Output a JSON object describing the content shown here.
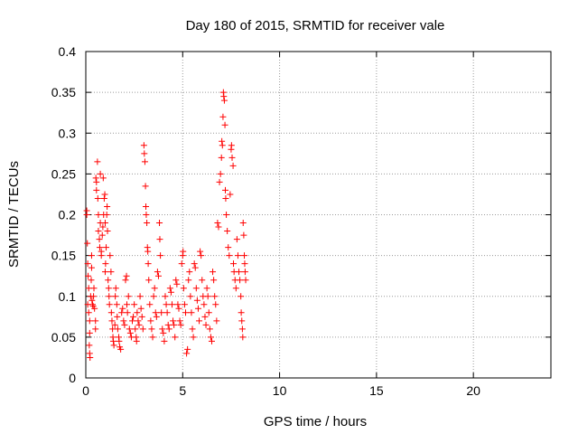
{
  "chart_data": {
    "type": "scatter",
    "title": "Day 180 of 2015, SRMTID for receiver vale",
    "xlabel": "GPS time / hours",
    "ylabel": "SRMTID / TECUs",
    "xlim": [
      0,
      24
    ],
    "ylim": [
      0,
      0.4
    ],
    "xticks": [
      0,
      5,
      10,
      15,
      20
    ],
    "yticks": [
      0,
      0.05,
      0.1,
      0.15,
      0.2,
      0.25,
      0.3,
      0.35,
      0.4
    ],
    "xtick_labels": [
      "0",
      "5",
      "10",
      "15",
      "20"
    ],
    "ytick_labels": [
      "0",
      "0.05",
      "0.1",
      "0.15",
      "0.2",
      "0.25",
      "0.3",
      "0.35",
      "0.4"
    ],
    "grid": true,
    "marker": "+",
    "color": "#ff0000",
    "series": [
      {
        "name": "SRMTID",
        "points": [
          [
            0.05,
            0.205
          ],
          [
            0.05,
            0.2
          ],
          [
            0.08,
            0.165
          ],
          [
            0.1,
            0.14
          ],
          [
            0.12,
            0.125
          ],
          [
            0.15,
            0.11
          ],
          [
            0.1,
            0.09
          ],
          [
            0.15,
            0.08
          ],
          [
            0.2,
            0.07
          ],
          [
            0.2,
            0.055
          ],
          [
            0.18,
            0.04
          ],
          [
            0.2,
            0.03
          ],
          [
            0.22,
            0.025
          ],
          [
            0.25,
            0.1
          ],
          [
            0.28,
            0.12
          ],
          [
            0.3,
            0.135
          ],
          [
            0.3,
            0.15
          ],
          [
            0.32,
            0.095
          ],
          [
            0.35,
            0.09
          ],
          [
            0.38,
            0.088
          ],
          [
            0.4,
            0.1
          ],
          [
            0.42,
            0.11
          ],
          [
            0.45,
            0.085
          ],
          [
            0.5,
            0.07
          ],
          [
            0.5,
            0.06
          ],
          [
            0.52,
            0.245
          ],
          [
            0.55,
            0.24
          ],
          [
            0.55,
            0.23
          ],
          [
            0.6,
            0.265
          ],
          [
            0.62,
            0.22
          ],
          [
            0.65,
            0.2
          ],
          [
            0.65,
            0.18
          ],
          [
            0.7,
            0.17
          ],
          [
            0.72,
            0.16
          ],
          [
            0.75,
            0.19
          ],
          [
            0.75,
            0.25
          ],
          [
            0.8,
            0.15
          ],
          [
            0.8,
            0.155
          ],
          [
            0.85,
            0.175
          ],
          [
            0.88,
            0.185
          ],
          [
            0.9,
            0.245
          ],
          [
            0.92,
            0.2
          ],
          [
            0.95,
            0.22
          ],
          [
            0.98,
            0.225
          ],
          [
            1.0,
            0.19
          ],
          [
            1.0,
            0.13
          ],
          [
            1.02,
            0.14
          ],
          [
            1.05,
            0.16
          ],
          [
            1.08,
            0.2
          ],
          [
            1.1,
            0.21
          ],
          [
            1.12,
            0.18
          ],
          [
            1.15,
            0.12
          ],
          [
            1.18,
            0.11
          ],
          [
            1.2,
            0.1
          ],
          [
            1.22,
            0.09
          ],
          [
            1.25,
            0.15
          ],
          [
            1.3,
            0.13
          ],
          [
            1.32,
            0.08
          ],
          [
            1.35,
            0.07
          ],
          [
            1.38,
            0.06
          ],
          [
            1.4,
            0.05
          ],
          [
            1.42,
            0.045
          ],
          [
            1.45,
            0.04
          ],
          [
            1.5,
            0.065
          ],
          [
            1.52,
            0.1
          ],
          [
            1.55,
            0.11
          ],
          [
            1.6,
            0.09
          ],
          [
            1.62,
            0.075
          ],
          [
            1.65,
            0.06
          ],
          [
            1.7,
            0.05
          ],
          [
            1.72,
            0.045
          ],
          [
            1.75,
            0.038
          ],
          [
            1.8,
            0.035
          ],
          [
            1.85,
            0.08
          ],
          [
            1.9,
            0.085
          ],
          [
            1.95,
            0.07
          ],
          [
            2.0,
            0.065
          ],
          [
            2.05,
            0.12
          ],
          [
            2.1,
            0.125
          ],
          [
            2.12,
            0.09
          ],
          [
            2.15,
            0.08
          ],
          [
            2.2,
            0.1
          ],
          [
            2.25,
            0.06
          ],
          [
            2.3,
            0.055
          ],
          [
            2.35,
            0.05
          ],
          [
            2.4,
            0.07
          ],
          [
            2.45,
            0.075
          ],
          [
            2.5,
            0.09
          ],
          [
            2.55,
            0.06
          ],
          [
            2.6,
            0.05
          ],
          [
            2.62,
            0.045
          ],
          [
            2.65,
            0.08
          ],
          [
            2.7,
            0.07
          ],
          [
            2.75,
            0.065
          ],
          [
            2.8,
            0.1
          ],
          [
            2.85,
            0.085
          ],
          [
            2.9,
            0.075
          ],
          [
            2.95,
            0.06
          ],
          [
            3.0,
            0.285
          ],
          [
            3.02,
            0.275
          ],
          [
            3.05,
            0.265
          ],
          [
            3.08,
            0.235
          ],
          [
            3.1,
            0.21
          ],
          [
            3.12,
            0.2
          ],
          [
            3.15,
            0.19
          ],
          [
            3.18,
            0.16
          ],
          [
            3.2,
            0.155
          ],
          [
            3.22,
            0.14
          ],
          [
            3.25,
            0.12
          ],
          [
            3.3,
            0.09
          ],
          [
            3.35,
            0.07
          ],
          [
            3.4,
            0.06
          ],
          [
            3.45,
            0.05
          ],
          [
            3.5,
            0.1
          ],
          [
            3.55,
            0.11
          ],
          [
            3.6,
            0.08
          ],
          [
            3.65,
            0.075
          ],
          [
            3.7,
            0.13
          ],
          [
            3.75,
            0.125
          ],
          [
            3.8,
            0.19
          ],
          [
            3.82,
            0.17
          ],
          [
            3.85,
            0.15
          ],
          [
            3.9,
            0.08
          ],
          [
            3.95,
            0.06
          ],
          [
            4.0,
            0.055
          ],
          [
            4.05,
            0.045
          ],
          [
            4.1,
            0.1
          ],
          [
            4.15,
            0.09
          ],
          [
            4.2,
            0.08
          ],
          [
            4.25,
            0.065
          ],
          [
            4.3,
            0.06
          ],
          [
            4.35,
            0.11
          ],
          [
            4.4,
            0.105
          ],
          [
            4.45,
            0.09
          ],
          [
            4.5,
            0.07
          ],
          [
            4.55,
            0.065
          ],
          [
            4.6,
            0.05
          ],
          [
            4.65,
            0.12
          ],
          [
            4.7,
            0.115
          ],
          [
            4.75,
            0.09
          ],
          [
            4.8,
            0.085
          ],
          [
            4.85,
            0.07
          ],
          [
            4.9,
            0.065
          ],
          [
            4.95,
            0.14
          ],
          [
            5.0,
            0.15
          ],
          [
            5.02,
            0.155
          ],
          [
            5.05,
            0.11
          ],
          [
            5.1,
            0.09
          ],
          [
            5.15,
            0.08
          ],
          [
            5.2,
            0.03
          ],
          [
            5.25,
            0.035
          ],
          [
            5.3,
            0.12
          ],
          [
            5.35,
            0.13
          ],
          [
            5.4,
            0.1
          ],
          [
            5.45,
            0.08
          ],
          [
            5.5,
            0.06
          ],
          [
            5.55,
            0.05
          ],
          [
            5.6,
            0.14
          ],
          [
            5.65,
            0.135
          ],
          [
            5.7,
            0.11
          ],
          [
            5.75,
            0.095
          ],
          [
            5.8,
            0.085
          ],
          [
            5.85,
            0.07
          ],
          [
            5.9,
            0.155
          ],
          [
            5.95,
            0.15
          ],
          [
            6.0,
            0.12
          ],
          [
            6.05,
            0.1
          ],
          [
            6.1,
            0.09
          ],
          [
            6.15,
            0.075
          ],
          [
            6.2,
            0.065
          ],
          [
            6.25,
            0.11
          ],
          [
            6.3,
            0.1
          ],
          [
            6.35,
            0.08
          ],
          [
            6.4,
            0.06
          ],
          [
            6.45,
            0.05
          ],
          [
            6.5,
            0.045
          ],
          [
            6.55,
            0.13
          ],
          [
            6.6,
            0.12
          ],
          [
            6.65,
            0.1
          ],
          [
            6.7,
            0.09
          ],
          [
            6.75,
            0.07
          ],
          [
            6.8,
            0.19
          ],
          [
            6.85,
            0.185
          ],
          [
            6.9,
            0.24
          ],
          [
            6.95,
            0.25
          ],
          [
            7.0,
            0.27
          ],
          [
            7.02,
            0.29
          ],
          [
            7.05,
            0.285
          ],
          [
            7.08,
            0.32
          ],
          [
            7.1,
            0.35
          ],
          [
            7.12,
            0.345
          ],
          [
            7.15,
            0.34
          ],
          [
            7.18,
            0.31
          ],
          [
            7.2,
            0.23
          ],
          [
            7.22,
            0.22
          ],
          [
            7.25,
            0.2
          ],
          [
            7.3,
            0.18
          ],
          [
            7.35,
            0.16
          ],
          [
            7.4,
            0.15
          ],
          [
            7.45,
            0.225
          ],
          [
            7.5,
            0.28
          ],
          [
            7.52,
            0.285
          ],
          [
            7.55,
            0.27
          ],
          [
            7.6,
            0.26
          ],
          [
            7.62,
            0.14
          ],
          [
            7.65,
            0.13
          ],
          [
            7.7,
            0.12
          ],
          [
            7.75,
            0.11
          ],
          [
            7.8,
            0.17
          ],
          [
            7.85,
            0.15
          ],
          [
            7.9,
            0.13
          ],
          [
            7.95,
            0.12
          ],
          [
            8.0,
            0.1
          ],
          [
            8.02,
            0.08
          ],
          [
            8.05,
            0.07
          ],
          [
            8.08,
            0.06
          ],
          [
            8.1,
            0.05
          ],
          [
            8.12,
            0.19
          ],
          [
            8.15,
            0.175
          ],
          [
            8.18,
            0.15
          ],
          [
            8.2,
            0.14
          ],
          [
            8.22,
            0.13
          ],
          [
            8.25,
            0.12
          ]
        ]
      }
    ]
  }
}
